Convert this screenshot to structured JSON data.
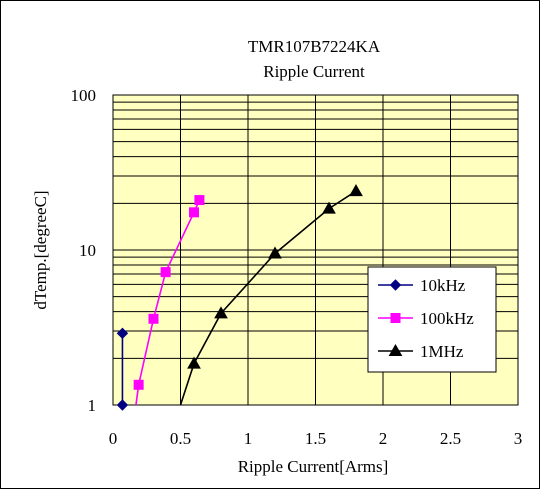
{
  "chart_data": {
    "type": "line",
    "title": "TMR107B7224KA",
    "subtitle": "Ripple Current",
    "xlabel": "Ripple Current[Arms]",
    "ylabel": "dTemp.[degreeC]",
    "xlim": [
      0,
      3
    ],
    "ylim": [
      1,
      100
    ],
    "yscale": "log",
    "x_ticks": [
      "0",
      "0.5",
      "1",
      "1.5",
      "2",
      "2.5",
      "3"
    ],
    "y_ticks": [
      "1",
      "10",
      "100"
    ],
    "grid": true,
    "legend_position": "right-middle",
    "plot_background": "#ffffc0",
    "series": [
      {
        "name": "10kHz",
        "color": "#000080",
        "marker": "diamond",
        "x": [
          0.07,
          0.07
        ],
        "y": [
          1.0,
          2.9
        ],
        "curve": {
          "x": [
            0.07,
            0.07
          ],
          "y": [
            1.0,
            2.9
          ]
        }
      },
      {
        "name": "100kHz",
        "color": "#ff00ff",
        "marker": "square",
        "x": [
          0.19,
          0.3,
          0.39,
          0.6,
          0.64
        ],
        "y": [
          1.35,
          3.6,
          7.2,
          17.5,
          21.0
        ],
        "curve": {
          "x": [
            0.17,
            0.19,
            0.3,
            0.39,
            0.6,
            0.64
          ],
          "y": [
            1.0,
            1.35,
            3.6,
            7.2,
            17.5,
            21.0
          ]
        }
      },
      {
        "name": "1MHz",
        "color": "#000000",
        "marker": "triangle",
        "x": [
          0.6,
          0.8,
          1.2,
          1.6,
          1.8
        ],
        "y": [
          1.85,
          3.9,
          9.5,
          18.5,
          24.0
        ],
        "curve": {
          "x": [
            0.5,
            0.6,
            0.8,
            1.2,
            1.6,
            1.8
          ],
          "y": [
            1.0,
            1.85,
            3.9,
            9.5,
            18.5,
            24.0
          ]
        }
      }
    ]
  }
}
